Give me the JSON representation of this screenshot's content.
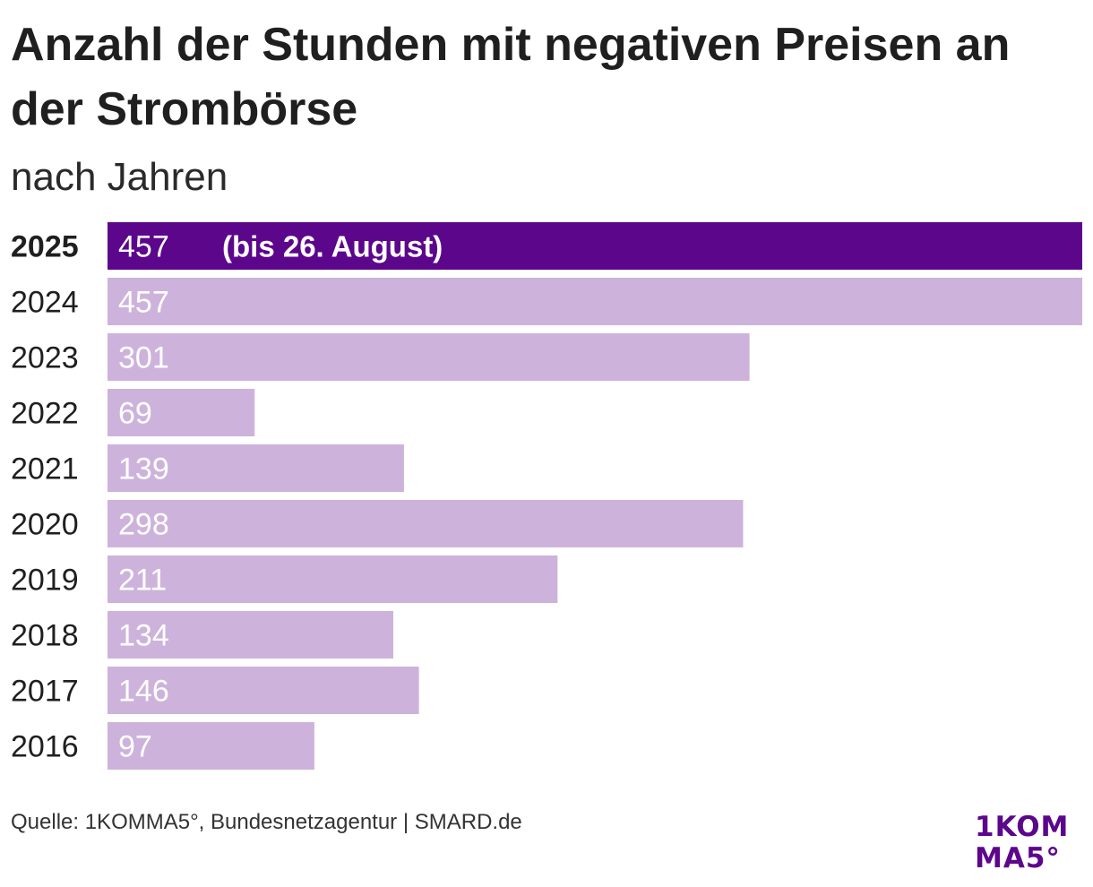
{
  "title": "Anzahl der Stunden mit negativen Preisen an der Strombörse",
  "subtitle": "nach Jahren",
  "source": "Quelle: 1KOMMA5°, Bundesnetzagentur | SMARD.de",
  "logo": {
    "line1": "1KOM",
    "line2": "MA5°",
    "color": "#5c068c"
  },
  "colors": {
    "highlight_bar": "#5c068c",
    "bar": "#cdb3dc",
    "bar_label": "#ffffff",
    "category_label": "#1f1f1f"
  },
  "chart_data": {
    "type": "bar",
    "orientation": "horizontal",
    "categories": [
      "2025",
      "2024",
      "2023",
      "2022",
      "2021",
      "2020",
      "2019",
      "2018",
      "2017",
      "2016"
    ],
    "values": [
      457,
      457,
      301,
      69,
      139,
      298,
      211,
      134,
      146,
      97
    ],
    "highlight_category": "2025",
    "annotation": "(bis 26. August)",
    "xlim": [
      0,
      457
    ],
    "grid": false,
    "legend": "none"
  }
}
